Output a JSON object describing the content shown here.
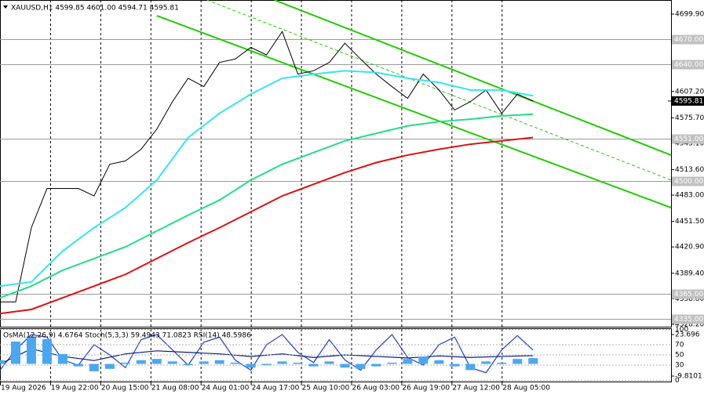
{
  "chart_data": [
    {
      "type": "line",
      "title": "XAUUSD,H1 4599.85 4601.00 4594.71 4595.81",
      "xlim": [
        0,
        214
      ],
      "xticks": [
        {
          "value": 0,
          "label": "19 Aug 2026"
        },
        {
          "value": 16,
          "label": "19 Aug 22:00"
        },
        {
          "value": 32,
          "label": "20 Aug 15:00"
        },
        {
          "value": 48,
          "label": "21 Aug 08:00"
        },
        {
          "value": 64,
          "label": "24 Aug 01:00"
        },
        {
          "value": 80,
          "label": "24 Aug 17:00"
        },
        {
          "value": 96,
          "label": "25 Aug 10:00"
        },
        {
          "value": 112,
          "label": "26 Aug 03:00"
        },
        {
          "value": 128,
          "label": "26 Aug 19:00"
        },
        {
          "value": 144,
          "label": "27 Aug 12:00"
        },
        {
          "value": 160,
          "label": "28 Aug 05:00"
        }
      ],
      "ylim": [
        4324.4,
        4716.8
      ],
      "yticks": [
        {
          "value": 4699.9,
          "label": "4699.90"
        },
        {
          "value": 4607.2,
          "label": "4607.20"
        },
        {
          "value": 4575.7,
          "label": "4575.70"
        },
        {
          "value": 4545.1,
          "label": "4545.10"
        },
        {
          "value": 4513.6,
          "label": "4513.60"
        },
        {
          "value": 4483,
          "label": "4483.00"
        },
        {
          "value": 4451.5,
          "label": "4451.50"
        },
        {
          "value": 4420.9,
          "label": "4420.90"
        },
        {
          "value": 4389.4,
          "label": "4389.40"
        },
        {
          "value": 4358.8,
          "label": "4358.80"
        },
        {
          "value": 4328.2,
          "label": "4328.20"
        }
      ],
      "levels": [
        {
          "value": 4670,
          "label": "4670.00"
        },
        {
          "value": 4640,
          "label": "4640.00"
        },
        {
          "value": 4551,
          "label": "4551.00"
        },
        {
          "value": 4500,
          "label": "4500.00"
        },
        {
          "value": 4365,
          "label": "4365.00"
        },
        {
          "value": 4335,
          "label": "4335.00"
        }
      ],
      "last_price": {
        "value": 4595.81,
        "label": "4595.81"
      },
      "series": [
        {
          "color": "#000000",
          "x": [
            0,
            5,
            10,
            15,
            20,
            25,
            30,
            35,
            40,
            45,
            50,
            55,
            60,
            65,
            70,
            75,
            80,
            85,
            90,
            95,
            100,
            105,
            110,
            115,
            120,
            125,
            130,
            135,
            140,
            145,
            150,
            155,
            160,
            165,
            170
          ],
          "values": [
            4355,
            4355,
            4444,
            4491,
            4491,
            4491,
            4482,
            4520,
            4524,
            4538,
            4562,
            4595,
            4623,
            4613,
            4642,
            4646,
            4660,
            4651,
            4679,
            4628,
            4632,
            4642,
            4665,
            4646,
            4628,
            4613,
            4599,
            4628,
            4609,
            4585,
            4595,
            4609,
            4581,
            4604,
            4595.81
          ]
        },
        {
          "color": "#33e6f0",
          "x": [
            0,
            10,
            20,
            30,
            40,
            50,
            60,
            70,
            80,
            90,
            100,
            110,
            120,
            130,
            140,
            150,
            160,
            170
          ],
          "values": [
            4374,
            4379,
            4416,
            4444,
            4468,
            4501,
            4552,
            4581,
            4604,
            4623,
            4628,
            4632,
            4630,
            4623,
            4618,
            4609,
            4609,
            4602
          ]
        },
        {
          "color": "#22dd88",
          "x": [
            0,
            10,
            20,
            30,
            40,
            50,
            60,
            70,
            80,
            90,
            100,
            110,
            120,
            130,
            140,
            150,
            160,
            170
          ],
          "values": [
            4360,
            4374,
            4393,
            4407,
            4421,
            4440,
            4459,
            4477,
            4501,
            4520,
            4534,
            4548,
            4557,
            4566,
            4571,
            4574,
            4578,
            4580
          ]
        },
        {
          "color": "#dd1111",
          "x": [
            0,
            10,
            20,
            30,
            40,
            50,
            60,
            70,
            80,
            90,
            100,
            110,
            120,
            130,
            140,
            150,
            160,
            170
          ],
          "values": [
            4341,
            4346,
            4360,
            4374,
            4388,
            4407,
            4426,
            4444,
            4463,
            4482,
            4496,
            4510,
            4522,
            4531,
            4538,
            4544,
            4548,
            4552
          ]
        }
      ],
      "channels": [
        {
          "color": "#22cc00",
          "dashed": false,
          "x": [
            87.5,
            214
          ],
          "values": [
            4716.8,
            4531
          ]
        },
        {
          "color": "#22cc00",
          "dashed": false,
          "x": [
            50,
            214
          ],
          "values": [
            4698,
            4468
          ]
        },
        {
          "color": "#22cc00",
          "dashed": true,
          "x": [
            66,
            214
          ],
          "values": [
            4716.8,
            4501
          ]
        }
      ]
    },
    {
      "type": "line",
      "title": "OsMA(12,26,9) 4.6764 Stoch(5,3,3) 59.4943 71.0823 RSI(14) 48.5986",
      "xlim": [
        0,
        214
      ],
      "ylim": [
        -2.3,
        100.8
      ],
      "yticks": [
        100,
        70,
        50,
        30,
        0
      ],
      "y2lim": [
        -14.24,
        28.12
      ],
      "y2ticks": [
        23.696,
        -9.8101
      ],
      "series": [
        {
          "color": "#4aa8f0",
          "axis": "y2",
          "x": [
            0,
            5,
            10,
            15,
            20,
            25,
            30,
            35,
            40,
            45,
            50,
            55,
            60,
            65,
            70,
            75,
            80,
            85,
            90,
            95,
            100,
            105,
            110,
            115,
            120,
            125,
            130,
            135,
            140,
            145,
            150,
            155,
            160,
            165,
            170
          ],
          "values": [
            3,
            18,
            22,
            20,
            8,
            -2,
            -6,
            -4,
            1,
            3,
            4,
            2,
            -1,
            2,
            3,
            1,
            -3,
            -1,
            2,
            1,
            -2,
            2,
            -3,
            -4,
            -2,
            1,
            4,
            6,
            3,
            -2,
            -5,
            2,
            1,
            4,
            4.6764
          ]
        },
        {
          "color": "#1f3fd0",
          "x": [
            0,
            5,
            10,
            15,
            20,
            25,
            30,
            35,
            40,
            45,
            50,
            55,
            60,
            65,
            70,
            75,
            80,
            85,
            90,
            95,
            100,
            105,
            110,
            115,
            120,
            125,
            130,
            135,
            140,
            145,
            150,
            155,
            160,
            165,
            170
          ],
          "values": [
            20,
            60,
            90,
            85,
            40,
            30,
            70,
            50,
            25,
            80,
            90,
            60,
            30,
            75,
            85,
            40,
            20,
            70,
            90,
            55,
            35,
            80,
            40,
            20,
            60,
            90,
            45,
            30,
            70,
            85,
            25,
            15,
            60,
            88,
            59.4943
          ]
        },
        {
          "color": "#0a1a80",
          "x": [
            0,
            10,
            20,
            30,
            40,
            50,
            60,
            70,
            80,
            90,
            100,
            110,
            120,
            130,
            140,
            150,
            160,
            170
          ],
          "values": [
            32,
            62,
            47,
            39,
            52,
            58,
            55,
            52,
            47,
            52,
            45,
            50,
            47,
            44,
            48,
            45,
            47,
            48.5986
          ]
        }
      ]
    }
  ]
}
